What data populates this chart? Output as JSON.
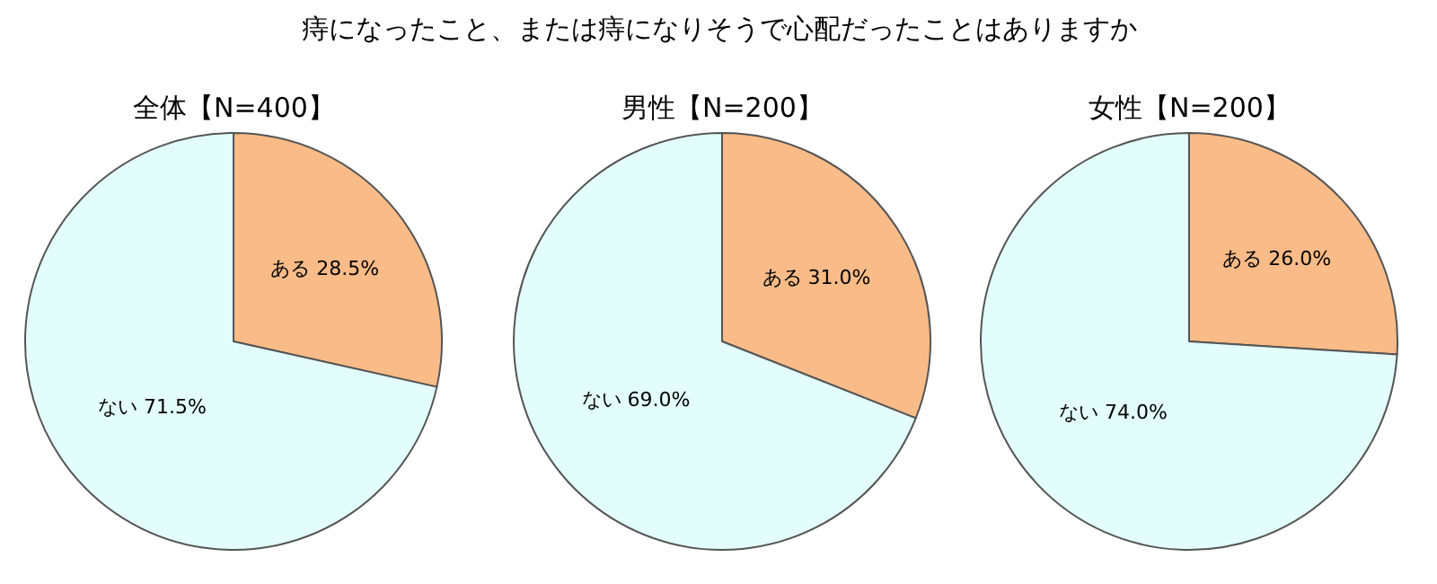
{
  "chart_data": [
    {
      "type": "pie",
      "title": "全体【N=400】",
      "annotations": [
        "痔になったこと、または痔になりそうで心配だったことはありますか"
      ],
      "categories": [
        "ある",
        "ない"
      ],
      "values": [
        28.5,
        71.5
      ],
      "value_labels": [
        "28.5%",
        "71.5%"
      ],
      "colors": [
        "#f9bb87",
        "#e3fdfd"
      ],
      "legend": false
    },
    {
      "type": "pie",
      "title": "男性【N=200】",
      "categories": [
        "ある",
        "ない"
      ],
      "values": [
        31.0,
        69.0
      ],
      "value_labels": [
        "31.0%",
        "69.0%"
      ],
      "colors": [
        "#f9bb87",
        "#e3fdfd"
      ],
      "legend": false
    },
    {
      "type": "pie",
      "title": "女性【N=200】",
      "categories": [
        "ある",
        "ない"
      ],
      "values": [
        26.0,
        74.0
      ],
      "value_labels": [
        "26.0%",
        "74.0%"
      ],
      "colors": [
        "#f9bb87",
        "#e3fdfd"
      ],
      "legend": false
    }
  ]
}
